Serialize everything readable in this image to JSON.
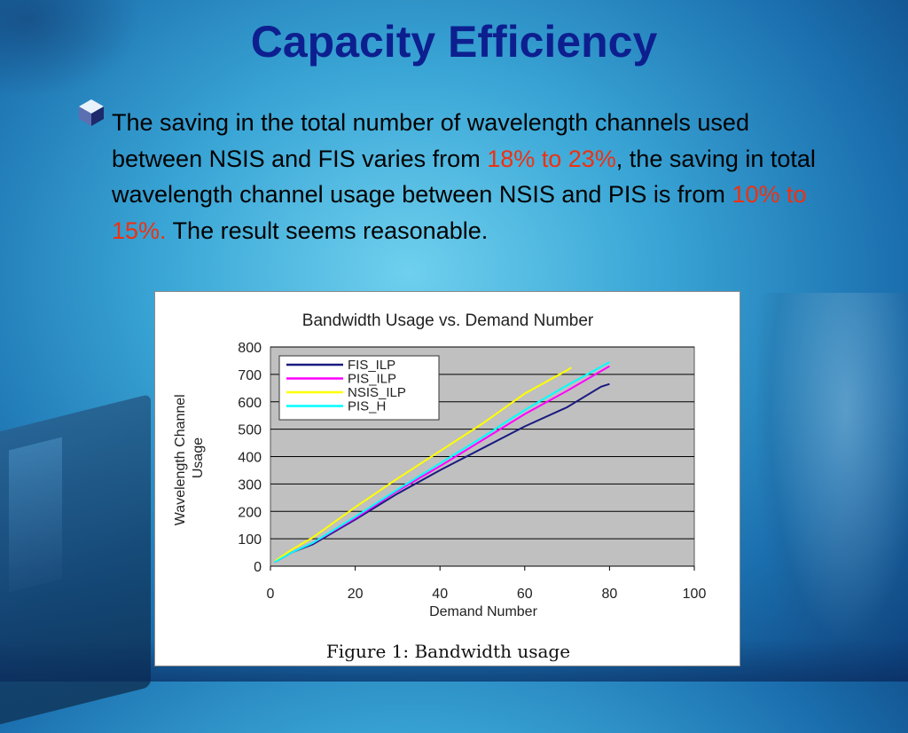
{
  "slide": {
    "title": "Capacity Efficiency",
    "bullet": {
      "p1": "The saving in the total number of wavelength channels used between NSIS and FIS varies from ",
      "h1": "18% to 23%",
      "p2": ", the saving in total wavelength channel usage between NSIS and PIS is from ",
      "h2": "10% to 15%.",
      "p3": " The result seems reasonable."
    },
    "highlight_color": "#f03010",
    "title_color": "#0d1f8f"
  },
  "figure": {
    "caption": "Figure 1: Bandwidth usage"
  },
  "chart_data": {
    "type": "line",
    "title": "Bandwidth Usage vs. Demand Number",
    "xlabel": "Demand Number",
    "ylabel_line1": "Wavelength Channel",
    "ylabel_line2": "Usage",
    "xlim": [
      0,
      100
    ],
    "ylim": [
      0,
      800
    ],
    "xticks": [
      0,
      20,
      40,
      60,
      80,
      100
    ],
    "yticks": [
      0,
      100,
      200,
      300,
      400,
      500,
      600,
      700,
      800
    ],
    "grid": "horizontal",
    "plot_background": "#c0c0c0",
    "legend_position": "top-left",
    "series": [
      {
        "name": "FIS_ILP",
        "color": "#1a1a80",
        "x": [
          1,
          5,
          10,
          20,
          30,
          40,
          50,
          60,
          70,
          78,
          80
        ],
        "y": [
          15,
          50,
          80,
          170,
          265,
          350,
          430,
          510,
          580,
          655,
          665
        ]
      },
      {
        "name": "PIS_ILP",
        "color": "#ff00ff",
        "x": [
          1,
          5,
          10,
          20,
          30,
          40,
          50,
          60,
          70,
          80
        ],
        "y": [
          15,
          50,
          85,
          175,
          275,
          365,
          460,
          555,
          640,
          730
        ]
      },
      {
        "name": "NSIS_ILP",
        "color": "#ffff00",
        "x": [
          1,
          5,
          10,
          20,
          30,
          40,
          50,
          60,
          70,
          71
        ],
        "y": [
          18,
          60,
          105,
          215,
          320,
          420,
          520,
          630,
          715,
          725
        ]
      },
      {
        "name": "PIS_H",
        "color": "#00ffff",
        "x": [
          1,
          5,
          10,
          20,
          30,
          40,
          50,
          60,
          70,
          80
        ],
        "y": [
          15,
          50,
          85,
          180,
          280,
          375,
          470,
          570,
          660,
          745
        ]
      }
    ]
  }
}
